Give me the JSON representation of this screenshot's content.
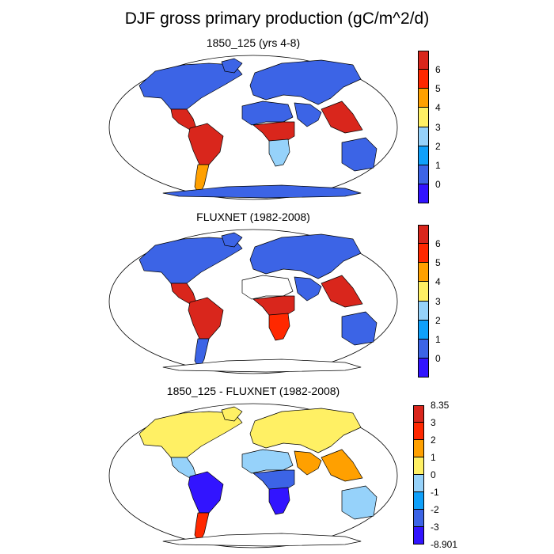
{
  "title": "DJF gross primary production (gC/m^2/d)",
  "panels": [
    {
      "title": "1850_125 (yrs 4-8)",
      "colorbar": {
        "labels": [
          "6",
          "5",
          "4",
          "3",
          "2",
          "1",
          "0"
        ],
        "colors": [
          "#d9261c",
          "#ff2800",
          "#ffa000",
          "#fff064",
          "#96d2fa",
          "#0fa0fa",
          "#3c64e6",
          "#3214ff"
        ]
      },
      "regions": [
        {
          "name": "north-america",
          "color": "#3c64e6"
        },
        {
          "name": "central-america",
          "color": "#d9261c"
        },
        {
          "name": "south-america",
          "color": "#d9261c"
        },
        {
          "name": "south-america-south",
          "color": "#ffa000"
        },
        {
          "name": "europe-asia",
          "color": "#3c64e6"
        },
        {
          "name": "north-africa",
          "color": "#3c64e6"
        },
        {
          "name": "central-africa",
          "color": "#d9261c"
        },
        {
          "name": "southern-africa",
          "color": "#96d2fa"
        },
        {
          "name": "south-asia",
          "color": "#3c64e6"
        },
        {
          "name": "southeast-asia",
          "color": "#d9261c"
        },
        {
          "name": "australia",
          "color": "#3c64e6"
        },
        {
          "name": "greenland",
          "color": "#3c64e6"
        },
        {
          "name": "antarctica",
          "color": "#3c64e6"
        }
      ]
    },
    {
      "title": "FLUXNET (1982-2008)",
      "colorbar": {
        "labels": [
          "6",
          "5",
          "4",
          "3",
          "2",
          "1",
          "0"
        ],
        "colors": [
          "#d9261c",
          "#ff2800",
          "#ffa000",
          "#fff064",
          "#96d2fa",
          "#0fa0fa",
          "#3c64e6",
          "#3214ff"
        ]
      },
      "regions": [
        {
          "name": "north-america",
          "color": "#3c64e6"
        },
        {
          "name": "central-america",
          "color": "#d9261c"
        },
        {
          "name": "south-america",
          "color": "#d9261c"
        },
        {
          "name": "south-america-south",
          "color": "#3c64e6"
        },
        {
          "name": "europe-asia",
          "color": "#3c64e6"
        },
        {
          "name": "north-africa",
          "color": "#ffffff"
        },
        {
          "name": "central-africa",
          "color": "#d9261c"
        },
        {
          "name": "southern-africa",
          "color": "#ff2800"
        },
        {
          "name": "south-asia",
          "color": "#3c64e6"
        },
        {
          "name": "southeast-asia",
          "color": "#d9261c"
        },
        {
          "name": "australia",
          "color": "#3c64e6"
        },
        {
          "name": "greenland",
          "color": "#3c64e6"
        },
        {
          "name": "antarctica",
          "color": "#ffffff"
        }
      ]
    },
    {
      "title": "1850_125 - FLUXNET (1982-2008)",
      "colorbar": {
        "labels": [
          "8.35",
          "3",
          "2",
          "1",
          "0",
          "-1",
          "-2",
          "-3",
          "-8.901"
        ],
        "colors": [
          "#d9261c",
          "#ff2800",
          "#ffa000",
          "#fff064",
          "#96d2fa",
          "#0fa0fa",
          "#3c64e6",
          "#3214ff"
        ]
      },
      "regions": [
        {
          "name": "north-america",
          "color": "#fff064"
        },
        {
          "name": "central-america",
          "color": "#96d2fa"
        },
        {
          "name": "south-america",
          "color": "#3214ff"
        },
        {
          "name": "south-america-south",
          "color": "#ff2800"
        },
        {
          "name": "europe-asia",
          "color": "#fff064"
        },
        {
          "name": "north-africa",
          "color": "#96d2fa"
        },
        {
          "name": "central-africa",
          "color": "#3c64e6"
        },
        {
          "name": "southern-africa",
          "color": "#3214ff"
        },
        {
          "name": "south-asia",
          "color": "#ffa000"
        },
        {
          "name": "southeast-asia",
          "color": "#ffa000"
        },
        {
          "name": "australia",
          "color": "#96d2fa"
        },
        {
          "name": "greenland",
          "color": "#fff064"
        },
        {
          "name": "antarctica",
          "color": "#ffffff"
        }
      ]
    }
  ]
}
